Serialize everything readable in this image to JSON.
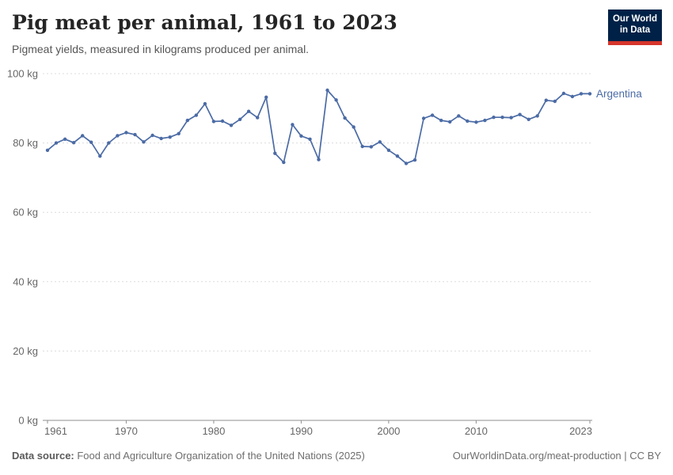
{
  "header": {
    "title": "Pig meat per animal, 1961 to 2023",
    "subtitle": "Pigmeat yields, measured in kilograms produced per animal.",
    "logo": {
      "line1": "Our World",
      "line2": "in Data"
    }
  },
  "chart_data": {
    "type": "line",
    "title": "Pig meat per animal, 1961 to 2023",
    "xlabel": "",
    "ylabel": "kilograms produced per animal",
    "unit": "kg",
    "ylim": [
      0,
      100
    ],
    "xlim": [
      1961,
      2023
    ],
    "yticks": [
      0,
      20,
      40,
      60,
      80,
      100
    ],
    "ytick_labels": [
      "0 kg",
      "20 kg",
      "40 kg",
      "60 kg",
      "80 kg",
      "100 kg"
    ],
    "xticks": [
      1961,
      1970,
      1980,
      1990,
      2000,
      2010,
      2023
    ],
    "xtick_labels": [
      "1961",
      "1970",
      "1980",
      "1990",
      "2000",
      "2010",
      "2023"
    ],
    "grid": "horizontal-dashed",
    "legend_position": "end-of-line",
    "series": [
      {
        "name": "Argentina",
        "color": "#4b6ba5",
        "x": [
          1961,
          1962,
          1963,
          1964,
          1965,
          1966,
          1967,
          1968,
          1969,
          1970,
          1971,
          1972,
          1973,
          1974,
          1975,
          1976,
          1977,
          1978,
          1979,
          1980,
          1981,
          1982,
          1983,
          1984,
          1985,
          1986,
          1987,
          1988,
          1989,
          1990,
          1991,
          1992,
          1993,
          1994,
          1995,
          1996,
          1997,
          1998,
          1999,
          2000,
          2001,
          2002,
          2003,
          2004,
          2005,
          2006,
          2007,
          2008,
          2009,
          2010,
          2011,
          2012,
          2013,
          2014,
          2015,
          2016,
          2017,
          2018,
          2019,
          2020,
          2021,
          2022,
          2023
        ],
        "values": [
          77.9,
          80.0,
          81.1,
          80.1,
          82.1,
          80.2,
          76.2,
          80.0,
          82.1,
          83.0,
          82.4,
          80.3,
          82.2,
          81.3,
          81.7,
          82.7,
          86.5,
          88.0,
          91.3,
          86.2,
          86.3,
          85.1,
          86.8,
          89.1,
          87.3,
          93.2,
          77.0,
          74.4,
          85.3,
          82.0,
          81.1,
          75.2,
          95.2,
          92.4,
          87.2,
          84.6,
          79.0,
          78.9,
          80.3,
          77.9,
          76.2,
          74.1,
          75.1,
          87.1,
          88.0,
          86.5,
          86.1,
          87.8,
          86.3,
          86.0,
          86.5,
          87.4,
          87.4,
          87.3,
          88.2,
          86.8,
          87.8,
          92.3,
          92.0,
          94.3,
          93.4,
          94.2,
          94.2
        ]
      }
    ]
  },
  "colors": {
    "line": "#4b6ba5",
    "grid": "#dcdcdc",
    "axis": "#8f8f8f",
    "tick_text": "#666666",
    "logo_bg": "#002147",
    "logo_red": "#d6352b"
  },
  "footer": {
    "source_label": "Data source:",
    "source_text": " Food and Agriculture Organization of the United Nations (2025)",
    "credit": "OurWorldinData.org/meat-production | CC BY"
  }
}
